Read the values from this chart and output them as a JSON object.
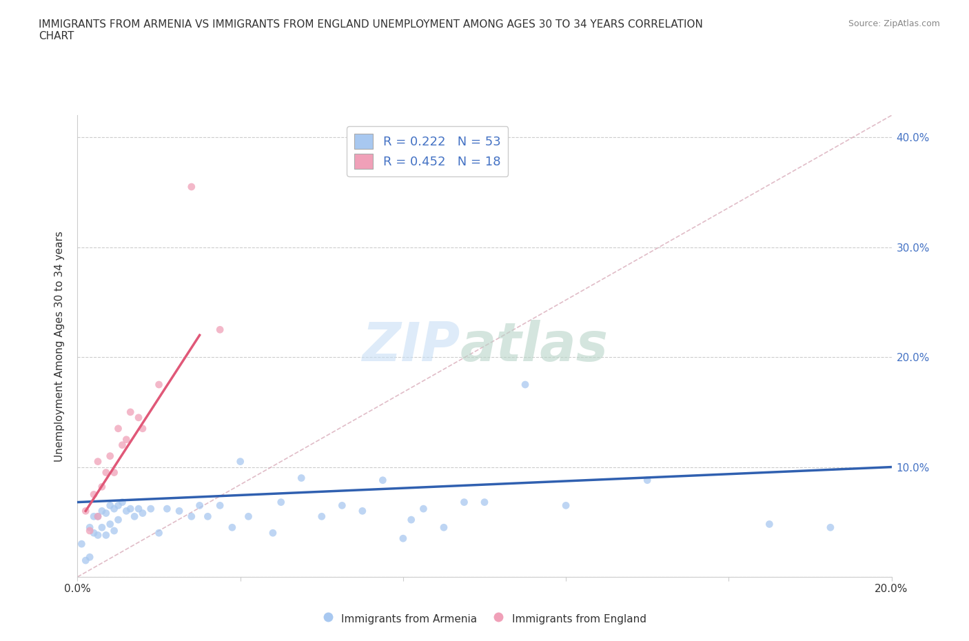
{
  "title": "IMMIGRANTS FROM ARMENIA VS IMMIGRANTS FROM ENGLAND UNEMPLOYMENT AMONG AGES 30 TO 34 YEARS CORRELATION\nCHART",
  "source": "Source: ZipAtlas.com",
  "xlabel": "",
  "ylabel": "Unemployment Among Ages 30 to 34 years",
  "xlim": [
    0.0,
    0.2
  ],
  "ylim": [
    0.0,
    0.42
  ],
  "xticks": [
    0.0,
    0.04,
    0.08,
    0.12,
    0.16,
    0.2
  ],
  "xticklabels": [
    "0.0%",
    "",
    "",
    "",
    "",
    "20.0%"
  ],
  "yticks": [
    0.0,
    0.1,
    0.2,
    0.3,
    0.4
  ],
  "yticklabels_right": [
    "",
    "10.0%",
    "20.0%",
    "30.0%",
    "40.0%"
  ],
  "armenia_color": "#a8c8f0",
  "england_color": "#f0a0b8",
  "armenia_R": 0.222,
  "armenia_N": 53,
  "england_R": 0.452,
  "england_N": 18,
  "legend_text_color": "#4472c4",
  "armenia_scatter": [
    [
      0.001,
      0.03
    ],
    [
      0.002,
      0.015
    ],
    [
      0.003,
      0.045
    ],
    [
      0.003,
      0.018
    ],
    [
      0.004,
      0.055
    ],
    [
      0.004,
      0.04
    ],
    [
      0.005,
      0.055
    ],
    [
      0.005,
      0.038
    ],
    [
      0.006,
      0.06
    ],
    [
      0.006,
      0.045
    ],
    [
      0.007,
      0.058
    ],
    [
      0.007,
      0.038
    ],
    [
      0.008,
      0.065
    ],
    [
      0.008,
      0.048
    ],
    [
      0.009,
      0.062
    ],
    [
      0.009,
      0.042
    ],
    [
      0.01,
      0.065
    ],
    [
      0.01,
      0.052
    ],
    [
      0.011,
      0.068
    ],
    [
      0.012,
      0.06
    ],
    [
      0.013,
      0.062
    ],
    [
      0.014,
      0.055
    ],
    [
      0.015,
      0.062
    ],
    [
      0.016,
      0.058
    ],
    [
      0.018,
      0.062
    ],
    [
      0.02,
      0.04
    ],
    [
      0.022,
      0.062
    ],
    [
      0.025,
      0.06
    ],
    [
      0.028,
      0.055
    ],
    [
      0.03,
      0.065
    ],
    [
      0.032,
      0.055
    ],
    [
      0.035,
      0.065
    ],
    [
      0.038,
      0.045
    ],
    [
      0.04,
      0.105
    ],
    [
      0.042,
      0.055
    ],
    [
      0.048,
      0.04
    ],
    [
      0.05,
      0.068
    ],
    [
      0.055,
      0.09
    ],
    [
      0.06,
      0.055
    ],
    [
      0.065,
      0.065
    ],
    [
      0.07,
      0.06
    ],
    [
      0.075,
      0.088
    ],
    [
      0.08,
      0.035
    ],
    [
      0.082,
      0.052
    ],
    [
      0.085,
      0.062
    ],
    [
      0.09,
      0.045
    ],
    [
      0.095,
      0.068
    ],
    [
      0.1,
      0.068
    ],
    [
      0.11,
      0.175
    ],
    [
      0.12,
      0.065
    ],
    [
      0.14,
      0.088
    ],
    [
      0.17,
      0.048
    ],
    [
      0.185,
      0.045
    ]
  ],
  "england_scatter": [
    [
      0.002,
      0.06
    ],
    [
      0.003,
      0.042
    ],
    [
      0.004,
      0.075
    ],
    [
      0.005,
      0.055
    ],
    [
      0.005,
      0.105
    ],
    [
      0.006,
      0.082
    ],
    [
      0.007,
      0.095
    ],
    [
      0.008,
      0.11
    ],
    [
      0.009,
      0.095
    ],
    [
      0.01,
      0.135
    ],
    [
      0.011,
      0.12
    ],
    [
      0.012,
      0.125
    ],
    [
      0.013,
      0.15
    ],
    [
      0.015,
      0.145
    ],
    [
      0.016,
      0.135
    ],
    [
      0.02,
      0.175
    ],
    [
      0.028,
      0.355
    ],
    [
      0.035,
      0.225
    ]
  ],
  "armenia_trend_x": [
    0.0,
    0.2
  ],
  "armenia_trend_y": [
    0.068,
    0.1
  ],
  "england_trend_x": [
    0.002,
    0.03
  ],
  "england_trend_y": [
    0.06,
    0.22
  ],
  "diagonal_line_x": [
    0.0,
    0.2
  ],
  "diagonal_line_y": [
    0.0,
    0.42
  ],
  "background_color": "#ffffff",
  "grid_color": "#cccccc",
  "watermark_zip_color": "#c8dff5",
  "watermark_atlas_color": "#b8d4c8"
}
